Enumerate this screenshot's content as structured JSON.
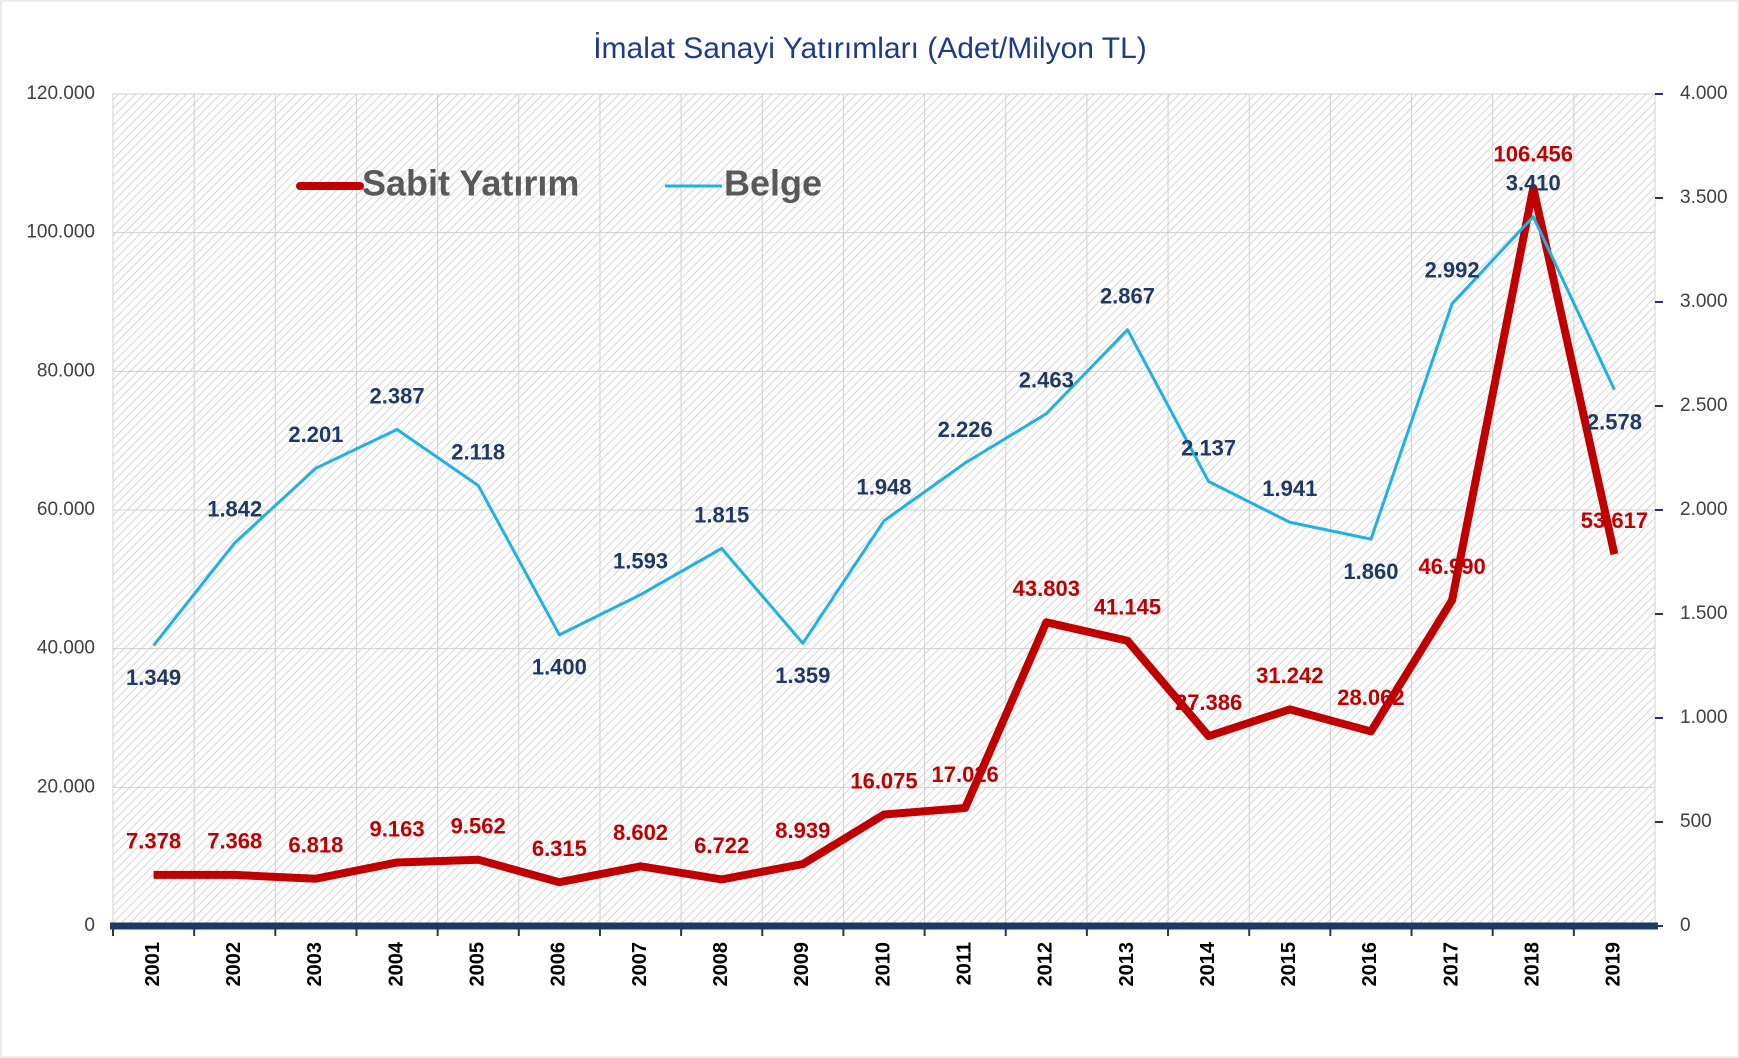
{
  "chart_data": {
    "type": "line",
    "title": "İmalat Sanayi Yatırımları (Adet/Milyon TL)",
    "categories": [
      "2001",
      "2002",
      "2003",
      "2004",
      "2005",
      "2006",
      "2007",
      "2008",
      "2009",
      "2010",
      "2011",
      "2012",
      "2013",
      "2014",
      "2015",
      "2016",
      "2017",
      "2018",
      "2019"
    ],
    "series": [
      {
        "name": "Sabit Yatırım",
        "color": "#c00000",
        "axis": "y",
        "values": [
          7378,
          7368,
          6818,
          9163,
          9562,
          6315,
          8602,
          6722,
          8939,
          16075,
          17026,
          43803,
          41145,
          27386,
          31242,
          28062,
          46990,
          106456,
          53617
        ],
        "value_labels": [
          "7.378",
          "7.368",
          "6.818",
          "9.163",
          "9.562",
          "6.315",
          "8.602",
          "6.722",
          "8.939",
          "16.075",
          "17.026",
          "43.803",
          "41.145",
          "27.386",
          "31.242",
          "28.062",
          "46.990",
          "106.456",
          "53.617"
        ]
      },
      {
        "name": "Belge",
        "color": "#1fb1e6",
        "axis": "y2",
        "values": [
          1349,
          1842,
          2201,
          2387,
          2118,
          1400,
          1593,
          1815,
          1359,
          1948,
          2226,
          2463,
          2867,
          2137,
          1941,
          1860,
          2992,
          3410,
          2578
        ],
        "value_labels": [
          "1.349",
          "1.842",
          "2.201",
          "2.387",
          "2.118",
          "1.400",
          "1.593",
          "1.815",
          "1.359",
          "1.948",
          "2.226",
          "2.463",
          "2.867",
          "2.137",
          "1.941",
          "1.860",
          "2.992",
          "3.410",
          "2.578"
        ]
      }
    ],
    "ylim": [
      0,
      120000
    ],
    "yticks": [
      0,
      {
        "value": 20000,
        "label": "20.000"
      },
      {
        "value": 40000,
        "label": "40.000"
      },
      {
        "value": 60000,
        "label": "60.000"
      },
      {
        "value": 80000,
        "label": "80.000"
      },
      {
        "value": 100000,
        "label": "100.000"
      },
      {
        "value": 120000,
        "label": "120.000"
      }
    ],
    "y2lim": [
      0,
      4000
    ],
    "y2ticks": [
      0,
      500,
      {
        "value": 1000,
        "label": "1.000"
      },
      {
        "value": 1500,
        "label": "1.500"
      },
      {
        "value": 2000,
        "label": "2.000"
      },
      {
        "value": 2500,
        "label": "2.500"
      },
      {
        "value": 3000,
        "label": "3.000"
      },
      {
        "value": 3500,
        "label": "3.500"
      },
      {
        "value": 4000,
        "label": "4.000"
      }
    ],
    "grid": true,
    "legend": "top-left"
  }
}
